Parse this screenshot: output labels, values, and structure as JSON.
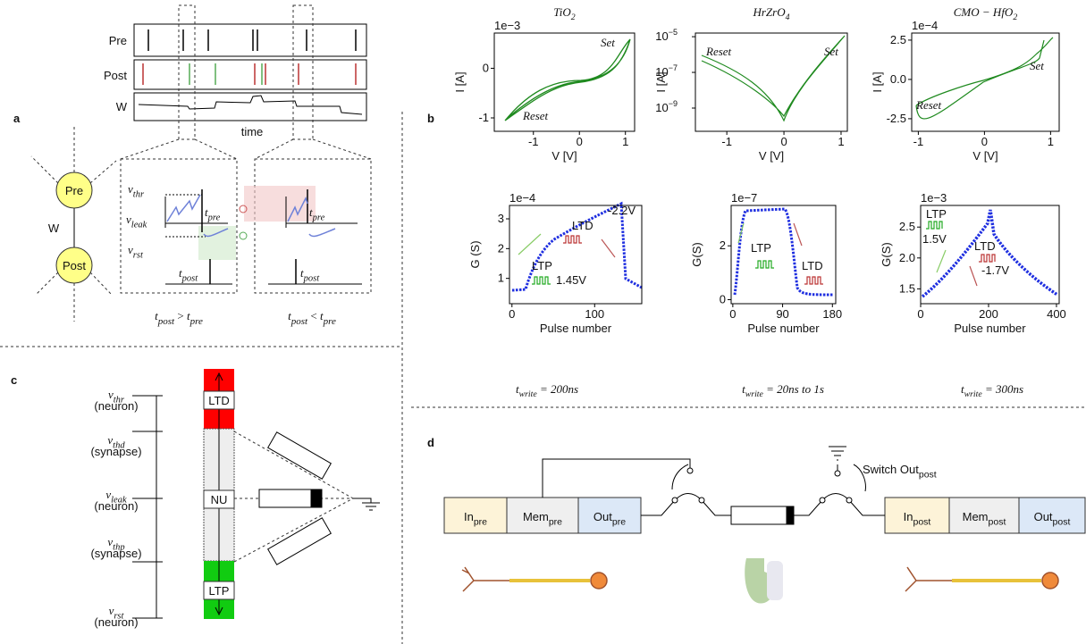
{
  "panel_labels": [
    "a",
    "b",
    "c",
    "d"
  ],
  "panel_a": {
    "raster": {
      "rows": [
        "Pre",
        "Post",
        "W"
      ],
      "xlabel": "time"
    },
    "network": {
      "nodes": [
        "Pre",
        "Post"
      ],
      "edge": "W"
    },
    "levels": [
      {
        "base": "v",
        "sub": "thr"
      },
      {
        "base": "v",
        "sub": "leak"
      },
      {
        "base": "v",
        "sub": "rst"
      }
    ],
    "times": {
      "pre": {
        "base": "t",
        "sub": "pre"
      },
      "post": {
        "base": "t",
        "sub": "post"
      }
    },
    "captions": [
      {
        "a": {
          "base": "t",
          "sub": "post"
        },
        "op": " > ",
        "b": {
          "base": "t",
          "sub": "pre"
        }
      },
      {
        "a": {
          "base": "t",
          "sub": "post"
        },
        "op": " < ",
        "b": {
          "base": "t",
          "sub": "pre"
        }
      }
    ]
  },
  "panel_b": {
    "plots": [
      {
        "title": {
          "base": "TiO",
          "sub": "2"
        },
        "xlabel": "V [V]",
        "ylabel": "I [A]",
        "offset": "1e−3",
        "xlim": [
          -1.85,
          1.2
        ],
        "xticks": [
          -1,
          0,
          1
        ],
        "ylim": [
          -1.27,
          0.71
        ],
        "yticks": [
          -1,
          0
        ],
        "annotations": [
          "Set",
          "Reset"
        ]
      },
      {
        "title": {
          "base": "HrZrO",
          "sub": "4"
        },
        "xlabel": "V [V]",
        "ylabel": "I [A]",
        "log": true,
        "xlim": [
          -1.55,
          1.11
        ],
        "xticks": [
          -1,
          0,
          1
        ],
        "ylim": [
          5e-11,
          1.6e-05
        ],
        "yticks": [
          {
            "value": 1e-09,
            "label": "10",
            "exp": "−9"
          },
          {
            "value": 1e-07,
            "label": "10",
            "exp": "−7"
          },
          {
            "value": 1e-05,
            "label": "10",
            "exp": "−5"
          }
        ],
        "annotations": [
          "Reset",
          "Set"
        ]
      },
      {
        "title": {
          "base": "CMO − HfO",
          "sub": "2"
        },
        "xlabel": "V [V]",
        "ylabel": "I [A]",
        "offset": "1e−4",
        "xlim": [
          -1.1,
          1.13
        ],
        "xticks": [
          -1,
          0,
          1
        ],
        "ylim": [
          -3.3,
          2.95
        ],
        "yticks": [
          -2.5,
          {
            "value": 0,
            "label": "0.0"
          },
          2.5
        ],
        "annotations": [
          "Reset",
          "Set"
        ]
      },
      {
        "xlabel": "Pulse number",
        "ylabel": "G (S)",
        "offset": "1e−4",
        "xlim": [
          -3,
          157
        ],
        "xticks": [
          0,
          100
        ],
        "ylim": [
          0.15,
          3.45
        ],
        "yticks": [
          1,
          2,
          3
        ],
        "annotations": [
          "-2.2V",
          "LTD",
          "LTP",
          "1.45V"
        ]
      },
      {
        "xlabel": "Pulse number",
        "ylabel": "G(S)",
        "offset": "1e−7",
        "xlim": [
          -3,
          186
        ],
        "xticks": [
          0,
          90,
          180
        ],
        "ylim": [
          -0.15,
          3.5
        ],
        "yticks": [
          0,
          2
        ],
        "annotations": [
          "LTP",
          "LTD"
        ]
      },
      {
        "xlabel": "Pulse number",
        "ylabel": "G(S)",
        "offset": "1e−3",
        "xlim": [
          0,
          408
        ],
        "xticks": [
          0,
          200,
          400
        ],
        "ylim": [
          1.26,
          2.85
        ],
        "yticks": [
          1.5,
          {
            "value": 2,
            "label": "2.0"
          },
          2.5
        ],
        "annotations": [
          "LTP",
          "1.5V",
          "LTD",
          "-1.7V"
        ]
      }
    ],
    "captions": [
      {
        "base": "t",
        "sub": "write",
        "rest": " = 200ns"
      },
      {
        "base": "t",
        "sub": "write",
        "rest": " = 20ns to 1s"
      },
      {
        "base": "t",
        "sub": "write",
        "rest": " = 300ns"
      }
    ]
  },
  "panel_c": {
    "levels": [
      {
        "base": "v",
        "sub": "thr",
        "note": "(neuron)"
      },
      {
        "base": "v",
        "sub": "thd",
        "note": "(synapse)"
      },
      {
        "base": "v",
        "sub": "leak",
        "note": "(neuron)"
      },
      {
        "base": "v",
        "sub": "thp",
        "note": "(synapse)"
      },
      {
        "base": "v",
        "sub": "rst",
        "note": "(neuron)"
      }
    ],
    "bars": [
      "LTD",
      "NU",
      "LTP"
    ]
  },
  "panel_d": {
    "blocks": [
      {
        "base": "In",
        "sub": "pre"
      },
      {
        "base": "Mem",
        "sub": "pre"
      },
      {
        "base": "Out",
        "sub": "pre"
      },
      {
        "base": "In",
        "sub": "post"
      },
      {
        "base": "Mem",
        "sub": "post"
      },
      {
        "base": "Out",
        "sub": "post"
      }
    ],
    "switch": {
      "base": "Switch Out",
      "sub": "post"
    }
  }
}
